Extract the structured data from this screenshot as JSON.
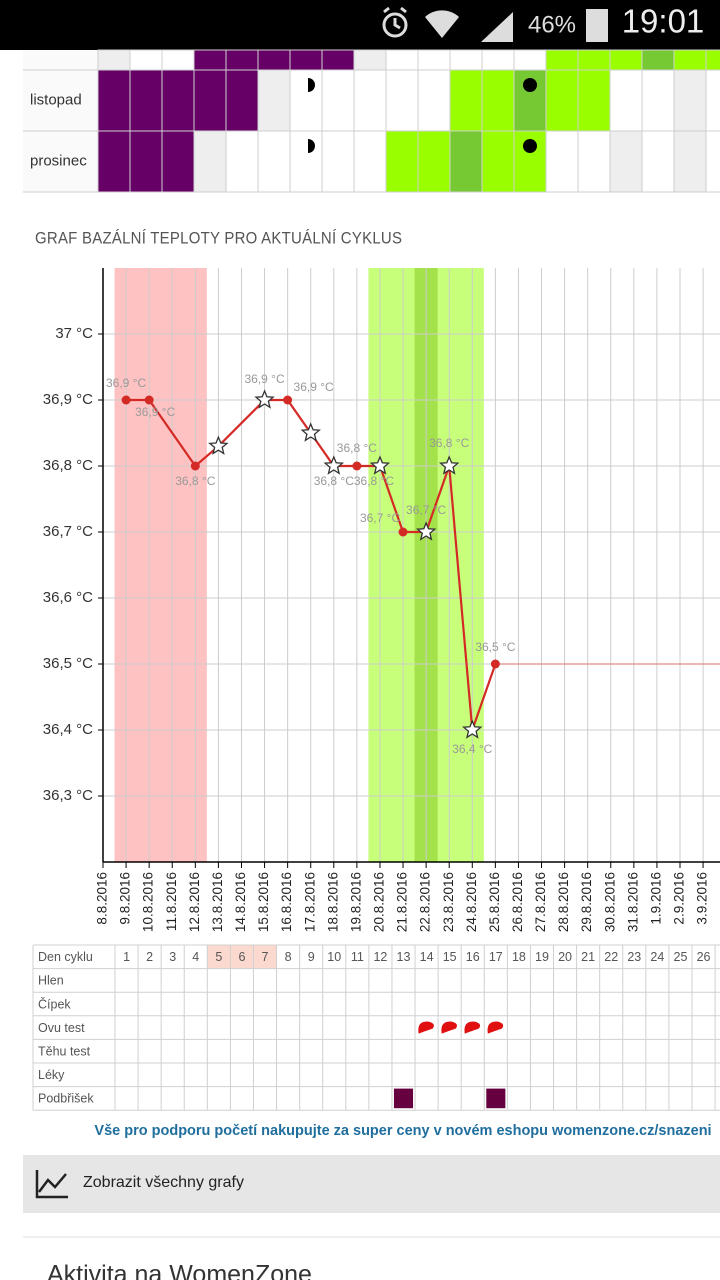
{
  "status_bar": {
    "battery": "46%",
    "time": "19:01"
  },
  "calendar": {
    "rows": [
      "listopad",
      "prosinec"
    ]
  },
  "chart_data": {
    "type": "line",
    "title": "GRAF BAZÁLNÍ TEPLOTY PRO AKTUÁLNÍ CYKLUS",
    "categories": [
      "8.8.2016",
      "9.8.2016",
      "10.8.2016",
      "11.8.2016",
      "12.8.2016",
      "13.8.2016",
      "14.8.2016",
      "15.8.2016",
      "16.8.2016",
      "17.8.2016",
      "18.8.2016",
      "19.8.2016",
      "20.8.2016",
      "21.8.2016",
      "22.8.2016",
      "23.8.2016",
      "24.8.2016",
      "25.8.2016",
      "26.8.2016",
      "27.8.2016",
      "28.8.2016",
      "29.8.2016",
      "30.8.2016",
      "31.8.2016",
      "1.9.2016",
      "2.9.2016",
      "3.9.2016"
    ],
    "series": [
      {
        "color": "#d42a26",
        "x": [
          "9.8.2016",
          "10.8.2016",
          "12.8.2016",
          "13.8.2016",
          "15.8.2016",
          "16.8.2016",
          "17.8.2016",
          "18.8.2016",
          "19.8.2016",
          "20.8.2016",
          "21.8.2016",
          "22.8.2016",
          "23.8.2016",
          "24.8.2016",
          "25.8.2016"
        ],
        "values": [
          36.9,
          36.9,
          36.8,
          36.83,
          36.9,
          36.9,
          36.85,
          36.8,
          36.8,
          36.8,
          36.7,
          36.7,
          36.8,
          36.4,
          36.5
        ],
        "value_labels": [
          "36,9 °C",
          "36,9 °C",
          "36,8 °C",
          null,
          "36,9 °C",
          "36,9 °C",
          null,
          "36,8 °C",
          "36,8 °C",
          "36,8 °C",
          "36,7 °C",
          "36,7 °C",
          "36,8 °C",
          "36,4 °C",
          "36,5 °C"
        ],
        "markers": [
          "circle",
          "circle",
          "circle",
          "star",
          "star",
          "circle",
          "star",
          "star",
          "circle",
          "star",
          "circle",
          "star",
          "star",
          "star",
          "circle"
        ]
      }
    ],
    "ylim": [
      36.2,
      37.1
    ],
    "yticks": [
      {
        "value": 36.3,
        "label": "36,3 °C"
      },
      {
        "value": 36.4,
        "label": "36,4 °C"
      },
      {
        "value": 36.5,
        "label": "36,5 °C"
      },
      {
        "value": 36.6,
        "label": "36,6 °C"
      },
      {
        "value": 36.7,
        "label": "36,7 °C"
      },
      {
        "value": 36.8,
        "label": "36,8 °C"
      },
      {
        "value": 36.9,
        "label": "36,9 °C"
      },
      {
        "value": 37,
        "label": "37 °C"
      }
    ],
    "grid": true,
    "bands": [
      {
        "from": "9.8.2016",
        "to": "12.8.2016",
        "color": "#ffc2c2"
      },
      {
        "from": "20.8.2016",
        "to": "24.8.2016",
        "color": "#c8ff7a"
      },
      {
        "from": "22.8.2016",
        "to": "22.8.2016",
        "color": "#a4e24c"
      }
    ]
  },
  "cycle_table": {
    "header": "Den cyklu",
    "days": [
      "1",
      "2",
      "3",
      "4",
      "5",
      "6",
      "7",
      "8",
      "9",
      "10",
      "11",
      "12",
      "13",
      "14",
      "15",
      "16",
      "17",
      "18",
      "19",
      "20",
      "21",
      "22",
      "23",
      "24",
      "25",
      "26"
    ],
    "rows": [
      "Hlen",
      "Čípek",
      "Ovu test",
      "Těhu test",
      "Léky",
      "Podbřišek"
    ]
  },
  "link": "Vše pro podporu početí nakupujte za super ceny v novém eshopu womenzone.cz/snazeni",
  "button": "Zobrazit všechny grafy",
  "section_title": "Aktivita na WomenZone"
}
